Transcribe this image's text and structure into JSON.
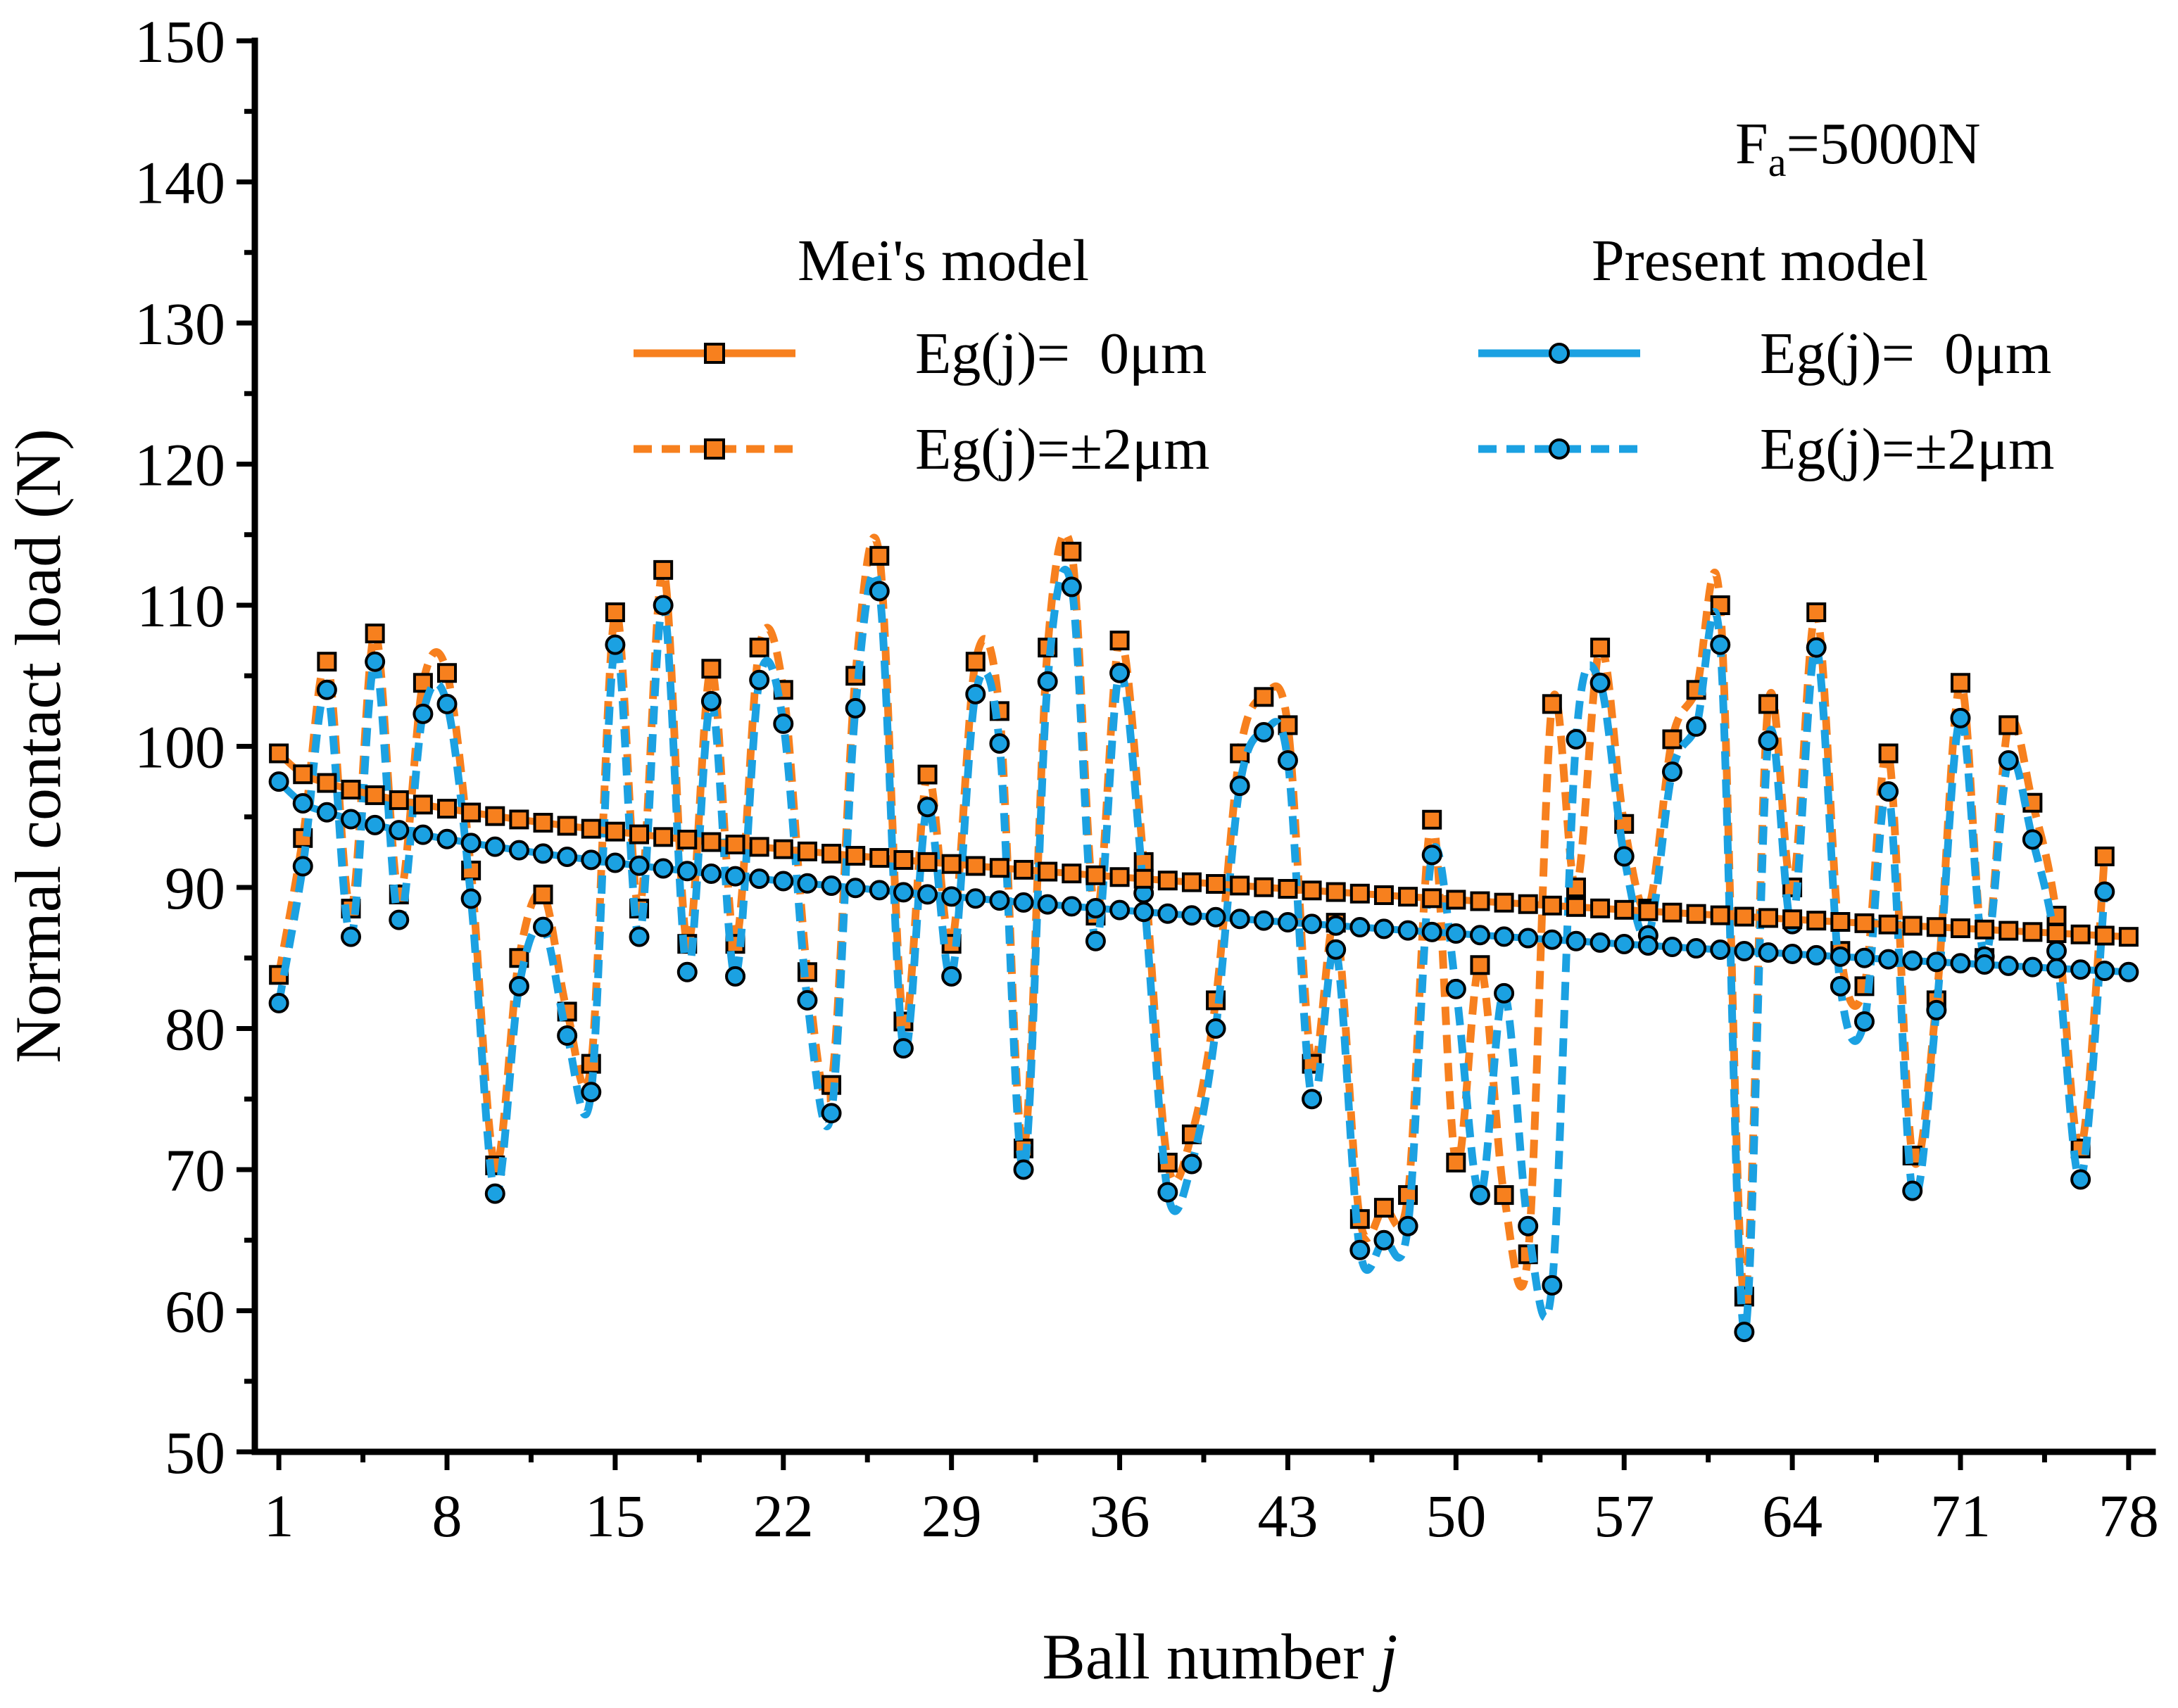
{
  "chart_data": {
    "type": "line",
    "title": "",
    "xlabel": "Ball number",
    "xlabel_var": "j",
    "ylabel": "Normal contact load (N)",
    "xlim": [
      0,
      79
    ],
    "ylim": [
      50,
      150
    ],
    "xticks": [
      1,
      8,
      15,
      22,
      29,
      36,
      43,
      50,
      57,
      64,
      71,
      78
    ],
    "yticks": [
      50,
      60,
      70,
      80,
      90,
      100,
      110,
      120,
      130,
      140,
      150
    ],
    "grid": false,
    "annotation": {
      "prefix": "F",
      "subscript": "a",
      "suffix": "=5000N"
    },
    "legend": {
      "group_left_title": "Mei's model",
      "group_right_title": "Present model",
      "entries": [
        {
          "series": 0,
          "label": "Eg(j)=  0μm"
        },
        {
          "series": 1,
          "label": "Eg(j)=±2μm"
        },
        {
          "series": 2,
          "label": "Eg(j)=  0μm"
        },
        {
          "series": 3,
          "label": "Eg(j)=±2μm"
        }
      ]
    },
    "series": [
      {
        "name": "Mei's model, Eg(j)=0μm",
        "color": "#F7801E",
        "line": "solid",
        "marker": "square",
        "start": 99.5,
        "end": 86.5
      },
      {
        "name": "Mei's model, Eg(j)=±2μm",
        "color": "#F7801E",
        "line": "dashed",
        "marker": "square",
        "values": [
          83.8,
          93.5,
          106,
          88.5,
          108,
          89.5,
          104.5,
          105.2,
          91.2,
          70.3,
          85,
          89.5,
          81.2,
          77.5,
          109.5,
          88.5,
          112.5,
          86,
          105.5,
          86,
          107,
          104,
          84,
          76,
          105,
          113.5,
          80.5,
          98,
          86,
          106,
          102.5,
          71.5,
          107,
          113.8,
          88,
          107.5,
          91.8,
          70.5,
          72.5,
          82,
          99.5,
          103.5,
          101.5,
          77.5,
          87.5,
          66.5,
          67.3,
          68.2,
          94.8,
          70.5,
          84.5,
          68.2,
          64,
          103,
          90,
          107,
          94.5,
          88.5,
          100.5,
          104,
          110,
          61,
          103,
          90,
          109.5,
          85.5,
          83,
          99.5,
          71,
          82,
          104.5,
          85,
          101.5,
          96,
          88,
          71.5,
          92.2
        ]
      },
      {
        "name": "Present model, Eg(j)=0μm",
        "color": "#1BA1E2",
        "line": "solid",
        "marker": "circle",
        "start": 97.5,
        "end": 84
      },
      {
        "name": "Present model, Eg(j)=±2μm",
        "color": "#1BA1E2",
        "line": "dashed",
        "marker": "circle",
        "values": [
          81.8,
          91.5,
          104,
          86.5,
          106,
          87.7,
          102.3,
          103,
          89.2,
          68.3,
          83,
          87.2,
          79.5,
          75.5,
          107.2,
          86.5,
          110,
          84,
          103.2,
          83.7,
          104.7,
          101.6,
          82,
          74,
          102.7,
          111,
          78.6,
          95.7,
          83.7,
          103.7,
          100.2,
          70,
          104.6,
          111.3,
          86.2,
          105.2,
          89.6,
          68.4,
          70.4,
          80,
          97.2,
          101,
          99,
          75,
          85.6,
          64.3,
          65,
          66,
          92.3,
          82.8,
          68.2,
          82.5,
          66,
          61.8,
          100.5,
          104.5,
          92.2,
          86.6,
          98.2,
          101.4,
          107.2,
          58.5,
          100.4,
          87.4,
          107,
          83,
          80.5,
          96.8,
          68.5,
          81.3,
          102,
          85.1,
          99,
          93.4,
          85.5,
          69.3,
          89.7
        ]
      }
    ]
  }
}
